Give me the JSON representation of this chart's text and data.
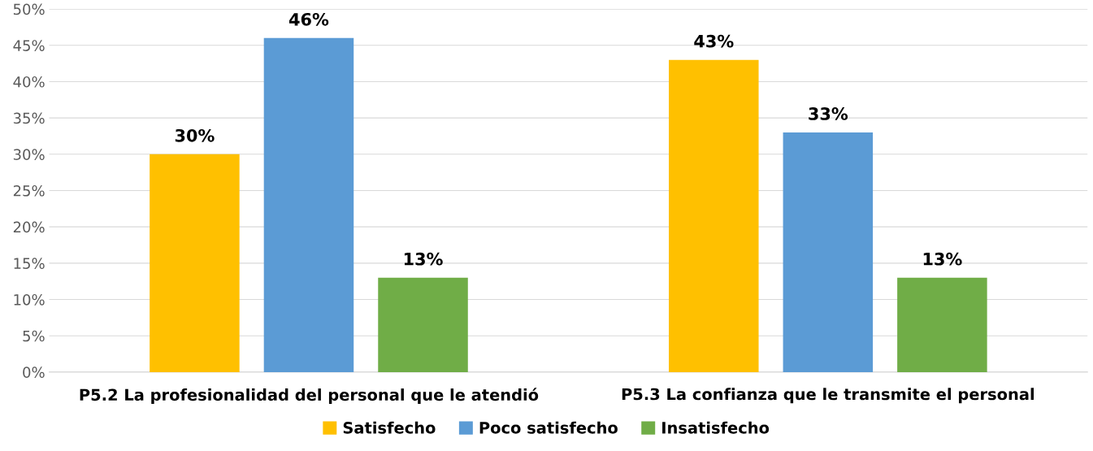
{
  "chart_data": {
    "type": "bar",
    "categories": [
      "P5.2 La profesionalidad del personal que le atendió",
      "P5.3 La confianza que le transmite el personal"
    ],
    "series": [
      {
        "name": "Satisfecho",
        "color": "#ffc000",
        "values": [
          30,
          43
        ],
        "value_labels": [
          "30%",
          "43%"
        ]
      },
      {
        "name": "Poco satisfecho",
        "color": "#5b9bd5",
        "values": [
          46,
          33
        ],
        "value_labels": [
          "46%",
          "33%"
        ]
      },
      {
        "name": "Insatisfecho",
        "color": "#70ad47",
        "values": [
          13,
          13
        ],
        "value_labels": [
          "13%",
          "13%"
        ]
      }
    ],
    "ylim": [
      0,
      50
    ],
    "yticks": [
      {
        "value": 0,
        "label": "0%"
      },
      {
        "value": 5,
        "label": "5%"
      },
      {
        "value": 10,
        "label": "10%"
      },
      {
        "value": 15,
        "label": "15%"
      },
      {
        "value": 20,
        "label": "20%"
      },
      {
        "value": 25,
        "label": "25%"
      },
      {
        "value": 30,
        "label": "30%"
      },
      {
        "value": 35,
        "label": "35%"
      },
      {
        "value": 40,
        "label": "40%"
      },
      {
        "value": 45,
        "label": "45%"
      },
      {
        "value": 50,
        "label": "50%"
      }
    ],
    "grid": "y",
    "legend": "bottom"
  }
}
